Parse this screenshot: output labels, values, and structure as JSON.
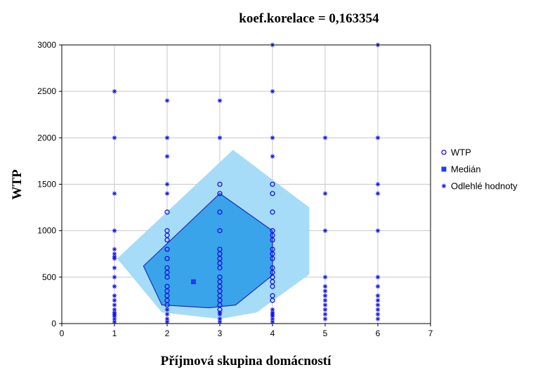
{
  "chart_data": {
    "type": "scatter",
    "title": "koef.korelace = 0,163354",
    "xlabel": "Příjmová skupina domácností",
    "ylabel": "WTP",
    "xlim": [
      0,
      7
    ],
    "ylim": [
      0,
      3000
    ],
    "x_ticks": [
      0,
      1,
      2,
      3,
      4,
      5,
      6,
      7
    ],
    "y_ticks": [
      0,
      500,
      1000,
      1500,
      2000,
      2500,
      3000
    ],
    "grid": true,
    "legend_position": "right",
    "colors": {
      "points": "#1414e6",
      "median": "#1e3cff",
      "outer_polygon": "#a6dcf7",
      "inner_polygon": "#3aa4ea",
      "inner_outline": "#1f2fb8",
      "grid": "#c8c8c8"
    },
    "legend": [
      {
        "name": "WTP",
        "marker": "circle"
      },
      {
        "name": "Medián",
        "marker": "square"
      },
      {
        "name": "Odlehlé hodnoty",
        "marker": "asterisk"
      }
    ],
    "outer_polygon": [
      [
        1.05,
        700
      ],
      [
        3.25,
        1870
      ],
      [
        4.7,
        1250
      ],
      [
        4.7,
        530
      ],
      [
        3.7,
        120
      ],
      [
        3.0,
        50
      ],
      [
        1.9,
        120
      ],
      [
        1.05,
        700
      ]
    ],
    "inner_polygon": [
      [
        1.55,
        620
      ],
      [
        3.0,
        1400
      ],
      [
        4.0,
        1000
      ],
      [
        4.0,
        520
      ],
      [
        3.3,
        200
      ],
      [
        2.8,
        170
      ],
      [
        1.9,
        200
      ],
      [
        1.55,
        620
      ]
    ],
    "median": {
      "x": 2.5,
      "y": 450
    },
    "wtp_points": [
      {
        "x": 2,
        "y": 1200
      },
      {
        "x": 2,
        "y": 1000
      },
      {
        "x": 2,
        "y": 950
      },
      {
        "x": 2,
        "y": 900
      },
      {
        "x": 2,
        "y": 800
      },
      {
        "x": 2,
        "y": 700
      },
      {
        "x": 2,
        "y": 600
      },
      {
        "x": 2,
        "y": 550
      },
      {
        "x": 2,
        "y": 500
      },
      {
        "x": 2,
        "y": 400
      },
      {
        "x": 2,
        "y": 350
      },
      {
        "x": 2,
        "y": 300
      },
      {
        "x": 2,
        "y": 250
      },
      {
        "x": 2,
        "y": 200
      },
      {
        "x": 3,
        "y": 1500
      },
      {
        "x": 3,
        "y": 1400
      },
      {
        "x": 3,
        "y": 1200
      },
      {
        "x": 3,
        "y": 1000
      },
      {
        "x": 3,
        "y": 800
      },
      {
        "x": 3,
        "y": 750
      },
      {
        "x": 3,
        "y": 700
      },
      {
        "x": 3,
        "y": 650
      },
      {
        "x": 3,
        "y": 600
      },
      {
        "x": 3,
        "y": 500
      },
      {
        "x": 3,
        "y": 450
      },
      {
        "x": 3,
        "y": 400
      },
      {
        "x": 3,
        "y": 350
      },
      {
        "x": 3,
        "y": 300
      },
      {
        "x": 3,
        "y": 250
      },
      {
        "x": 3,
        "y": 200
      },
      {
        "x": 3,
        "y": 150
      },
      {
        "x": 4,
        "y": 1500
      },
      {
        "x": 4,
        "y": 1400
      },
      {
        "x": 4,
        "y": 1200
      },
      {
        "x": 4,
        "y": 1000
      },
      {
        "x": 4,
        "y": 950
      },
      {
        "x": 4,
        "y": 900
      },
      {
        "x": 4,
        "y": 800
      },
      {
        "x": 4,
        "y": 750
      },
      {
        "x": 4,
        "y": 700
      },
      {
        "x": 4,
        "y": 600
      },
      {
        "x": 4,
        "y": 550
      },
      {
        "x": 4,
        "y": 500
      },
      {
        "x": 4,
        "y": 450
      },
      {
        "x": 4,
        "y": 400
      },
      {
        "x": 4,
        "y": 300
      },
      {
        "x": 4,
        "y": 250
      }
    ],
    "outliers": [
      {
        "x": 1,
        "y": 2500
      },
      {
        "x": 1,
        "y": 2000
      },
      {
        "x": 1,
        "y": 1400
      },
      {
        "x": 1,
        "y": 1000
      },
      {
        "x": 1,
        "y": 800
      },
      {
        "x": 1,
        "y": 750
      },
      {
        "x": 1,
        "y": 720
      },
      {
        "x": 1,
        "y": 700
      },
      {
        "x": 1,
        "y": 600
      },
      {
        "x": 1,
        "y": 500
      },
      {
        "x": 1,
        "y": 400
      },
      {
        "x": 1,
        "y": 300
      },
      {
        "x": 1,
        "y": 250
      },
      {
        "x": 1,
        "y": 200
      },
      {
        "x": 1,
        "y": 150
      },
      {
        "x": 1,
        "y": 120
      },
      {
        "x": 1,
        "y": 100
      },
      {
        "x": 1,
        "y": 80
      },
      {
        "x": 1,
        "y": 50
      },
      {
        "x": 1,
        "y": 20
      },
      {
        "x": 2,
        "y": 2400
      },
      {
        "x": 2,
        "y": 2000
      },
      {
        "x": 2,
        "y": 1800
      },
      {
        "x": 2,
        "y": 1500
      },
      {
        "x": 2,
        "y": 1400
      },
      {
        "x": 2,
        "y": 150
      },
      {
        "x": 2,
        "y": 100
      },
      {
        "x": 2,
        "y": 50
      },
      {
        "x": 2,
        "y": 20
      },
      {
        "x": 3,
        "y": 2400
      },
      {
        "x": 3,
        "y": 2000
      },
      {
        "x": 3,
        "y": 120
      },
      {
        "x": 3,
        "y": 100
      },
      {
        "x": 3,
        "y": 50
      },
      {
        "x": 3,
        "y": 20
      },
      {
        "x": 4,
        "y": 3000
      },
      {
        "x": 4,
        "y": 2500
      },
      {
        "x": 4,
        "y": 2000
      },
      {
        "x": 4,
        "y": 1800
      },
      {
        "x": 4,
        "y": 150
      },
      {
        "x": 4,
        "y": 120
      },
      {
        "x": 4,
        "y": 100
      },
      {
        "x": 4,
        "y": 80
      },
      {
        "x": 4,
        "y": 50
      },
      {
        "x": 4,
        "y": 20
      },
      {
        "x": 5,
        "y": 2000
      },
      {
        "x": 5,
        "y": 1400
      },
      {
        "x": 5,
        "y": 1000
      },
      {
        "x": 5,
        "y": 500
      },
      {
        "x": 5,
        "y": 400
      },
      {
        "x": 5,
        "y": 350
      },
      {
        "x": 5,
        "y": 300
      },
      {
        "x": 5,
        "y": 250
      },
      {
        "x": 5,
        "y": 200
      },
      {
        "x": 5,
        "y": 150
      },
      {
        "x": 5,
        "y": 100
      },
      {
        "x": 5,
        "y": 50
      },
      {
        "x": 6,
        "y": 3000
      },
      {
        "x": 6,
        "y": 2000
      },
      {
        "x": 6,
        "y": 1500
      },
      {
        "x": 6,
        "y": 1400
      },
      {
        "x": 6,
        "y": 1000
      },
      {
        "x": 6,
        "y": 500
      },
      {
        "x": 6,
        "y": 400
      },
      {
        "x": 6,
        "y": 300
      },
      {
        "x": 6,
        "y": 250
      },
      {
        "x": 6,
        "y": 200
      },
      {
        "x": 6,
        "y": 150
      },
      {
        "x": 6,
        "y": 100
      },
      {
        "x": 6,
        "y": 50
      }
    ]
  }
}
